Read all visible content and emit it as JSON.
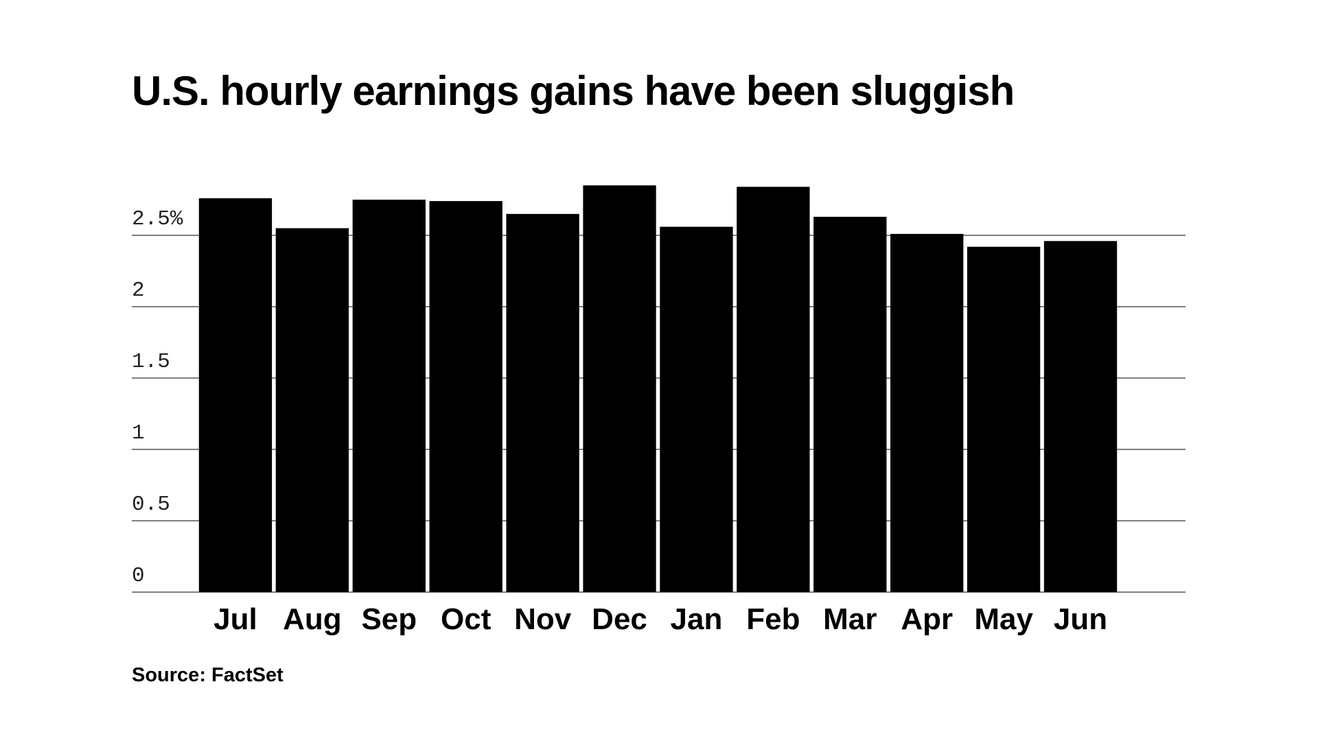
{
  "chart_data": {
    "type": "bar",
    "title": "U.S. hourly earnings gains have been sluggish",
    "source": "Source: FactSet",
    "categories": [
      "Jul",
      "Aug",
      "Sep",
      "Oct",
      "Nov",
      "Dec",
      "Jan",
      "Feb",
      "Mar",
      "Apr",
      "May",
      "Jun"
    ],
    "values": [
      2.76,
      2.55,
      2.75,
      2.74,
      2.65,
      2.85,
      2.56,
      2.84,
      2.63,
      2.51,
      2.42,
      2.46
    ],
    "color": "#000000",
    "ylim": [
      0,
      3
    ],
    "yticks": [
      0,
      0.5,
      1,
      1.5,
      2,
      {
        "value": 2.5,
        "label": "2.5%"
      }
    ],
    "grid": true
  }
}
